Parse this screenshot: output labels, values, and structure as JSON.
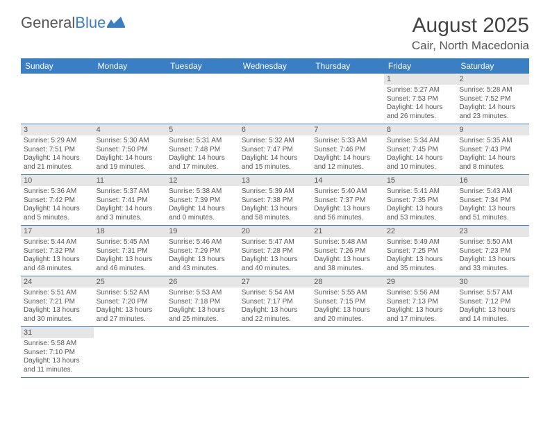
{
  "logo": {
    "text1": "General",
    "text2": "Blue"
  },
  "title": "August 2025",
  "location": "Cair, North Macedonia",
  "colors": {
    "header_bg": "#3a7fc4",
    "header_text": "#ffffff",
    "daynum_bg": "#e6e6e6",
    "border": "#3a7fc4",
    "body_text": "#555555",
    "page_bg": "#ffffff"
  },
  "typography": {
    "title_fontsize": 30,
    "location_fontsize": 17,
    "dayheader_fontsize": 12,
    "daynum_fontsize": 11,
    "body_fontsize": 10
  },
  "day_headers": [
    "Sunday",
    "Monday",
    "Tuesday",
    "Wednesday",
    "Thursday",
    "Friday",
    "Saturday"
  ],
  "weeks": [
    [
      null,
      null,
      null,
      null,
      null,
      {
        "n": "1",
        "sunrise": "Sunrise: 5:27 AM",
        "sunset": "Sunset: 7:53 PM",
        "day": "Daylight: 14 hours and 26 minutes."
      },
      {
        "n": "2",
        "sunrise": "Sunrise: 5:28 AM",
        "sunset": "Sunset: 7:52 PM",
        "day": "Daylight: 14 hours and 23 minutes."
      }
    ],
    [
      {
        "n": "3",
        "sunrise": "Sunrise: 5:29 AM",
        "sunset": "Sunset: 7:51 PM",
        "day": "Daylight: 14 hours and 21 minutes."
      },
      {
        "n": "4",
        "sunrise": "Sunrise: 5:30 AM",
        "sunset": "Sunset: 7:50 PM",
        "day": "Daylight: 14 hours and 19 minutes."
      },
      {
        "n": "5",
        "sunrise": "Sunrise: 5:31 AM",
        "sunset": "Sunset: 7:48 PM",
        "day": "Daylight: 14 hours and 17 minutes."
      },
      {
        "n": "6",
        "sunrise": "Sunrise: 5:32 AM",
        "sunset": "Sunset: 7:47 PM",
        "day": "Daylight: 14 hours and 15 minutes."
      },
      {
        "n": "7",
        "sunrise": "Sunrise: 5:33 AM",
        "sunset": "Sunset: 7:46 PM",
        "day": "Daylight: 14 hours and 12 minutes."
      },
      {
        "n": "8",
        "sunrise": "Sunrise: 5:34 AM",
        "sunset": "Sunset: 7:45 PM",
        "day": "Daylight: 14 hours and 10 minutes."
      },
      {
        "n": "9",
        "sunrise": "Sunrise: 5:35 AM",
        "sunset": "Sunset: 7:43 PM",
        "day": "Daylight: 14 hours and 8 minutes."
      }
    ],
    [
      {
        "n": "10",
        "sunrise": "Sunrise: 5:36 AM",
        "sunset": "Sunset: 7:42 PM",
        "day": "Daylight: 14 hours and 5 minutes."
      },
      {
        "n": "11",
        "sunrise": "Sunrise: 5:37 AM",
        "sunset": "Sunset: 7:41 PM",
        "day": "Daylight: 14 hours and 3 minutes."
      },
      {
        "n": "12",
        "sunrise": "Sunrise: 5:38 AM",
        "sunset": "Sunset: 7:39 PM",
        "day": "Daylight: 14 hours and 0 minutes."
      },
      {
        "n": "13",
        "sunrise": "Sunrise: 5:39 AM",
        "sunset": "Sunset: 7:38 PM",
        "day": "Daylight: 13 hours and 58 minutes."
      },
      {
        "n": "14",
        "sunrise": "Sunrise: 5:40 AM",
        "sunset": "Sunset: 7:37 PM",
        "day": "Daylight: 13 hours and 56 minutes."
      },
      {
        "n": "15",
        "sunrise": "Sunrise: 5:41 AM",
        "sunset": "Sunset: 7:35 PM",
        "day": "Daylight: 13 hours and 53 minutes."
      },
      {
        "n": "16",
        "sunrise": "Sunrise: 5:43 AM",
        "sunset": "Sunset: 7:34 PM",
        "day": "Daylight: 13 hours and 51 minutes."
      }
    ],
    [
      {
        "n": "17",
        "sunrise": "Sunrise: 5:44 AM",
        "sunset": "Sunset: 7:32 PM",
        "day": "Daylight: 13 hours and 48 minutes."
      },
      {
        "n": "18",
        "sunrise": "Sunrise: 5:45 AM",
        "sunset": "Sunset: 7:31 PM",
        "day": "Daylight: 13 hours and 46 minutes."
      },
      {
        "n": "19",
        "sunrise": "Sunrise: 5:46 AM",
        "sunset": "Sunset: 7:29 PM",
        "day": "Daylight: 13 hours and 43 minutes."
      },
      {
        "n": "20",
        "sunrise": "Sunrise: 5:47 AM",
        "sunset": "Sunset: 7:28 PM",
        "day": "Daylight: 13 hours and 40 minutes."
      },
      {
        "n": "21",
        "sunrise": "Sunrise: 5:48 AM",
        "sunset": "Sunset: 7:26 PM",
        "day": "Daylight: 13 hours and 38 minutes."
      },
      {
        "n": "22",
        "sunrise": "Sunrise: 5:49 AM",
        "sunset": "Sunset: 7:25 PM",
        "day": "Daylight: 13 hours and 35 minutes."
      },
      {
        "n": "23",
        "sunrise": "Sunrise: 5:50 AM",
        "sunset": "Sunset: 7:23 PM",
        "day": "Daylight: 13 hours and 33 minutes."
      }
    ],
    [
      {
        "n": "24",
        "sunrise": "Sunrise: 5:51 AM",
        "sunset": "Sunset: 7:21 PM",
        "day": "Daylight: 13 hours and 30 minutes."
      },
      {
        "n": "25",
        "sunrise": "Sunrise: 5:52 AM",
        "sunset": "Sunset: 7:20 PM",
        "day": "Daylight: 13 hours and 27 minutes."
      },
      {
        "n": "26",
        "sunrise": "Sunrise: 5:53 AM",
        "sunset": "Sunset: 7:18 PM",
        "day": "Daylight: 13 hours and 25 minutes."
      },
      {
        "n": "27",
        "sunrise": "Sunrise: 5:54 AM",
        "sunset": "Sunset: 7:17 PM",
        "day": "Daylight: 13 hours and 22 minutes."
      },
      {
        "n": "28",
        "sunrise": "Sunrise: 5:55 AM",
        "sunset": "Sunset: 7:15 PM",
        "day": "Daylight: 13 hours and 20 minutes."
      },
      {
        "n": "29",
        "sunrise": "Sunrise: 5:56 AM",
        "sunset": "Sunset: 7:13 PM",
        "day": "Daylight: 13 hours and 17 minutes."
      },
      {
        "n": "30",
        "sunrise": "Sunrise: 5:57 AM",
        "sunset": "Sunset: 7:12 PM",
        "day": "Daylight: 13 hours and 14 minutes."
      }
    ],
    [
      {
        "n": "31",
        "sunrise": "Sunrise: 5:58 AM",
        "sunset": "Sunset: 7:10 PM",
        "day": "Daylight: 13 hours and 11 minutes."
      },
      null,
      null,
      null,
      null,
      null,
      null
    ]
  ]
}
